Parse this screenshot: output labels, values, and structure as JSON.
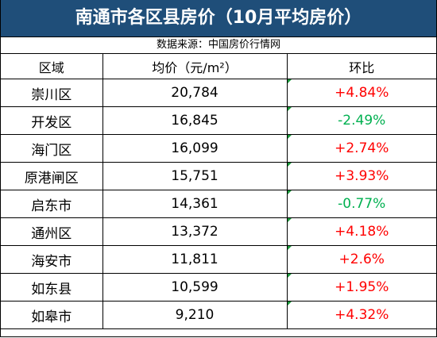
{
  "title": "南通市各区县房价（10月平均房价）",
  "source": "数据来源：中国房价行情网",
  "headers": {
    "region": "区域",
    "price": "均价（元/m²）",
    "change": "环比"
  },
  "colors": {
    "title_bg": "#1f4e79",
    "increase": "#ff0000",
    "decrease": "#00b050"
  },
  "rows": [
    {
      "region": "崇川区",
      "price": "20,784",
      "change": "+4.84%",
      "direction": "up"
    },
    {
      "region": "开发区",
      "price": "16,845",
      "change": "-2.49%",
      "direction": "down"
    },
    {
      "region": "海门区",
      "price": "16,099",
      "change": "+2.74%",
      "direction": "up"
    },
    {
      "region": "原港闸区",
      "price": "15,751",
      "change": "+3.93%",
      "direction": "up"
    },
    {
      "region": "启东市",
      "price": "14,361",
      "change": "-0.77%",
      "direction": "down"
    },
    {
      "region": "通州区",
      "price": "13,372",
      "change": "+4.18%",
      "direction": "up"
    },
    {
      "region": "海安市",
      "price": "11,811",
      "change": "+2.6%",
      "direction": "up"
    },
    {
      "region": "如东县",
      "price": "10,599",
      "change": "+1.95%",
      "direction": "up"
    },
    {
      "region": "如皋市",
      "price": "9,210",
      "change": "+4.32%",
      "direction": "up"
    }
  ]
}
